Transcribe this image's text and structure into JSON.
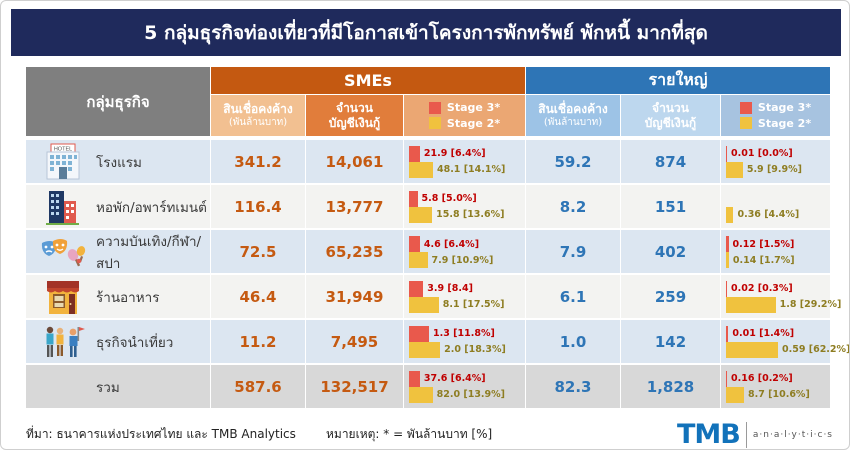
{
  "title": "5 กลุ่มธุรกิจท่องเที่ยวที่มีโอกาสเข้าโครงการพักทรัพย์ พักหนี้ มากที่สุด",
  "header": {
    "group_col": "กลุ่มธุรกิจ",
    "sme_section": "SMEs",
    "large_section": "รายใหญ่",
    "loans_label": "สินเชื่อคงค้าง",
    "loans_unit": "(พันล้านบาท)",
    "accounts_label_line1": "จำนวน",
    "accounts_label_line2": "บัญชีเงินกู้",
    "stage3_label": "Stage 3*",
    "stage2_label": "Stage 2*"
  },
  "chart_data": {
    "type": "table",
    "title": "5 กลุ่มธุรกิจท่องเที่ยวที่มีโอกาสเข้าโครงการพักทรัพย์ พักหนี้ มากที่สุด",
    "column_groups": [
      "SMEs",
      "รายใหญ่"
    ],
    "columns": [
      "กลุ่มธุรกิจ",
      "สินเชื่อคงค้าง (พันล้านบาท)",
      "จำนวนบัญชีเงินกู้",
      "Stage 3*",
      "Stage 2*",
      "สินเชื่อคงค้าง (พันล้านบาท)",
      "จำนวนบัญชีเงินกู้",
      "Stage 3*",
      "Stage 2*"
    ],
    "bar_unit": "พันล้านบาท [%]",
    "rows": [
      {
        "icon": "hotel-icon",
        "label": "โรงแรม",
        "sme": {
          "loans": "341.2",
          "accounts": "14,061",
          "stage3": {
            "text": "21.9 [6.4%]",
            "value": 21.9,
            "pct": 6.4
          },
          "stage2": {
            "text": "48.1 [14.1%]",
            "value": 48.1,
            "pct": 14.1
          }
        },
        "large": {
          "loans": "59.2",
          "accounts": "874",
          "stage3": {
            "text": "0.01 [0.0%]",
            "value": 0.01,
            "pct": 0.0
          },
          "stage2": {
            "text": "5.9 [9.9%]",
            "value": 5.9,
            "pct": 9.9
          }
        }
      },
      {
        "icon": "apartment-icon",
        "label": "หอพัก/อพาร์ทเมนต์",
        "sme": {
          "loans": "116.4",
          "accounts": "13,777",
          "stage3": {
            "text": "5.8 [5.0%]",
            "value": 5.8,
            "pct": 5.0
          },
          "stage2": {
            "text": "15.8 [13.6%]",
            "value": 15.8,
            "pct": 13.6
          }
        },
        "large": {
          "loans": "8.2",
          "accounts": "151",
          "stage3": null,
          "stage2": {
            "text": "0.36 [4.4%]",
            "value": 0.36,
            "pct": 4.4
          }
        }
      },
      {
        "icon": "entertainment-icon",
        "label": "ความบันเทิง/กีฬา/สปา",
        "sme": {
          "loans": "72.5",
          "accounts": "65,235",
          "stage3": {
            "text": "4.6 [6.4%]",
            "value": 4.6,
            "pct": 6.4
          },
          "stage2": {
            "text": "7.9 [10.9%]",
            "value": 7.9,
            "pct": 10.9
          }
        },
        "large": {
          "loans": "7.9",
          "accounts": "402",
          "stage3": {
            "text": "0.12 [1.5%]",
            "value": 0.12,
            "pct": 1.5
          },
          "stage2": {
            "text": "0.14 [1.7%]",
            "value": 0.14,
            "pct": 1.7
          }
        }
      },
      {
        "icon": "restaurant-icon",
        "label": "ร้านอาหาร",
        "sme": {
          "loans": "46.4",
          "accounts": "31,949",
          "stage3": {
            "text": "3.9 [8.4]",
            "value": 3.9,
            "pct": 8.4
          },
          "stage2": {
            "text": "8.1 [17.5%]",
            "value": 8.1,
            "pct": 17.5
          }
        },
        "large": {
          "loans": "6.1",
          "accounts": "259",
          "stage3": {
            "text": "0.02 [0.3%]",
            "value": 0.02,
            "pct": 0.3
          },
          "stage2": {
            "text": "1.8 [29.2%]",
            "value": 1.8,
            "pct": 29.2
          }
        }
      },
      {
        "icon": "tour-icon",
        "label": "ธุรกิจนำเที่ยว",
        "sme": {
          "loans": "11.2",
          "accounts": "7,495",
          "stage3": {
            "text": "1.3 [11.8%]",
            "value": 1.3,
            "pct": 11.8
          },
          "stage2": {
            "text": "2.0 [18.3%]",
            "value": 2.0,
            "pct": 18.3
          }
        },
        "large": {
          "loans": "1.0",
          "accounts": "142",
          "stage3": {
            "text": "0.01 [1.4%]",
            "value": 0.01,
            "pct": 1.4
          },
          "stage2": {
            "text": "0.59 [62.2%]",
            "value": 0.59,
            "pct": 62.2
          }
        }
      },
      {
        "icon": null,
        "is_total": true,
        "label": "รวม",
        "sme": {
          "loans": "587.6",
          "accounts": "132,517",
          "stage3": {
            "text": "37.6 [6.4%]",
            "value": 37.6,
            "pct": 6.4
          },
          "stage2": {
            "text": "82.0 [13.9%]",
            "value": 82.0,
            "pct": 13.9
          }
        },
        "large": {
          "loans": "82.3",
          "accounts": "1,828",
          "stage3": {
            "text": "0.16 [0.2%]",
            "value": 0.16,
            "pct": 0.2
          },
          "stage2": {
            "text": "8.7 [10.6%]",
            "value": 8.7,
            "pct": 10.6
          }
        }
      }
    ]
  },
  "footer": {
    "source": "ที่มา: ธนาคารแห่งประเทศไทย และ TMB Analytics",
    "note": "หมายเหตุ: * = พันล้านบาท [%]",
    "logo_main": "TMB",
    "logo_sub": "a·n·a·l·y·t·i·c·s"
  },
  "colors": {
    "title_bg": "#1f2a5c",
    "group_header_bg": "#7f7f7f",
    "sme_header_bg": "#c45911",
    "large_header_bg": "#2e75b6",
    "stage3_red": "#e9594c",
    "stage2_yellow": "#f0c23e",
    "stage3_text": "#c00000",
    "stage2_text": "#8e7d22",
    "sme_value_text": "#c55a11",
    "large_value_text": "#2e75b6",
    "row_blue": "#dce6f1",
    "row_white": "#f3f3f1",
    "total_row_bg": "#d8d8d8",
    "logo_blue": "#1272ba"
  }
}
